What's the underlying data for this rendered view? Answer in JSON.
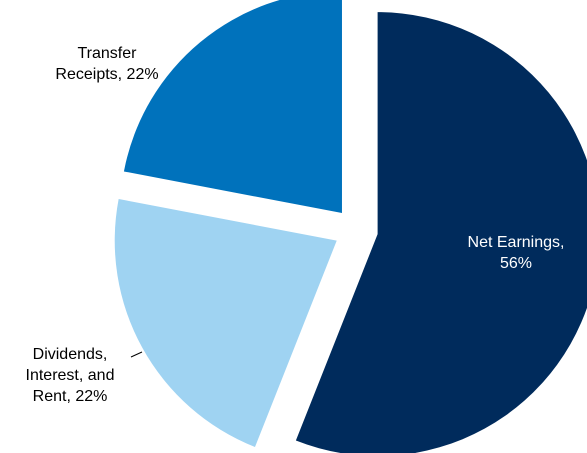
{
  "chart_data": {
    "type": "pie",
    "title": "",
    "exploded": true,
    "slices": [
      {
        "name": "Net Earnings",
        "value": 56,
        "color": "#002B5C",
        "label_lines": [
          "Net Earnings,",
          "56%"
        ],
        "label_position": "inside"
      },
      {
        "name": "Dividends, Interest, and Rent",
        "value": 22,
        "color": "#9FD3F2",
        "label_lines": [
          "Dividends,",
          "Interest, and",
          "Rent, 22%"
        ],
        "label_position": "outside-left",
        "leader_line": true
      },
      {
        "name": "Transfer Receipts",
        "value": 22,
        "color": "#0072BC",
        "label_lines": [
          "Transfer",
          "Receipts, 22%"
        ],
        "label_position": "outside-top-left"
      }
    ]
  }
}
